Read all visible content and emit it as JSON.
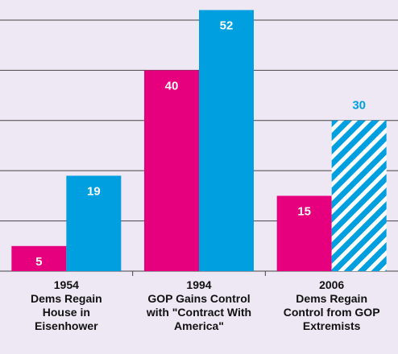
{
  "chart_data": {
    "type": "bar",
    "categories": [
      "1954\nDems Regain\nHouse in\nEisenhower",
      "1994\nGOP Gains Control\nwith \"Contract With\nAmerica\"",
      "2006\nDems Regain\nControl from GOP\nExtremists"
    ],
    "series": [
      {
        "color": "#e6007e",
        "values": [
          5,
          40,
          15
        ]
      },
      {
        "color": "#00a0e0",
        "values": [
          19,
          52,
          30
        ],
        "hatched": [
          false,
          false,
          true
        ]
      }
    ],
    "ylim": [
      0,
      54
    ],
    "yticks": [
      10,
      20,
      30,
      40,
      50
    ],
    "grid": true
  }
}
